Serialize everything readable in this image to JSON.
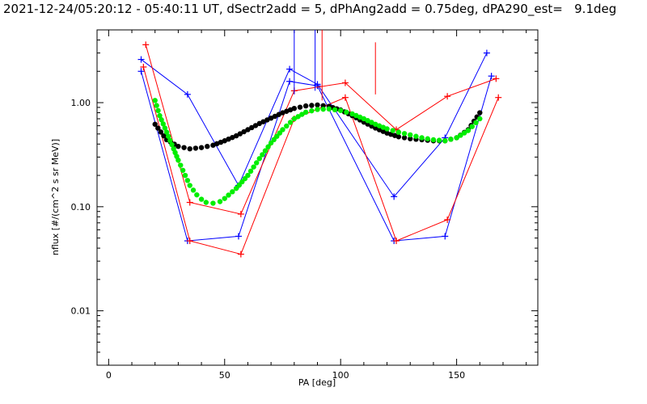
{
  "chart_data": {
    "type": "line",
    "title": "2021-12-24/05:20:12 - 05:40:11 UT, dSectr2add = 5, dPhAng2add = 0.75deg, dPA290_est=   9.1deg",
    "xlabel": "PA [deg]",
    "ylabel": "nflux [#/(cm^2 s sr MeV)]",
    "xlim": [
      -5,
      185
    ],
    "ylim": [
      0.003,
      5.0
    ],
    "yscale": "log",
    "grid": false,
    "x_ticks": [
      0,
      50,
      100,
      150
    ],
    "x_tick_labels": [
      "0",
      "50",
      "100",
      "150"
    ],
    "y_ticks": [
      0.01,
      0.1,
      1.0
    ],
    "y_tick_labels": [
      "0.01",
      "0.10",
      "1.00"
    ],
    "colors": {
      "blue": "#0000ff",
      "red": "#ff0000",
      "black": "#000000",
      "green": "#00ee00"
    },
    "series": [
      {
        "color": "blue",
        "marker": "+",
        "x": [
          14,
          34,
          56,
          78,
          90,
          123,
          145,
          163
        ],
        "y": [
          2.6,
          1.2,
          0.16,
          2.1,
          1.5,
          0.125,
          0.46,
          3.0
        ]
      },
      {
        "color": "blue",
        "marker": "+",
        "x": [
          14,
          34,
          56,
          78,
          90,
          123,
          145,
          165
        ],
        "y": [
          2.0,
          0.047,
          0.052,
          1.6,
          1.45,
          0.047,
          0.052,
          1.8
        ]
      },
      {
        "color": "red",
        "marker": "+",
        "x": [
          16,
          35,
          57,
          80,
          102,
          124,
          146,
          167
        ],
        "y": [
          3.6,
          0.11,
          0.085,
          1.3,
          1.55,
          0.55,
          1.15,
          1.7
        ]
      },
      {
        "color": "red",
        "marker": "+",
        "x": [
          15,
          35,
          57,
          80,
          102,
          124,
          146,
          168
        ],
        "y": [
          2.2,
          0.047,
          0.035,
          0.7,
          1.12,
          0.047,
          0.075,
          1.12
        ]
      },
      {
        "color": "black",
        "marker": "dot",
        "x": [
          20,
          25,
          30,
          35,
          40,
          45,
          50,
          55,
          60,
          65,
          70,
          75,
          80,
          85,
          90,
          95,
          100,
          105,
          110,
          115,
          120,
          125,
          130,
          135,
          140,
          145,
          150,
          155,
          160
        ],
        "y": [
          0.62,
          0.44,
          0.38,
          0.36,
          0.37,
          0.39,
          0.43,
          0.48,
          0.55,
          0.63,
          0.71,
          0.8,
          0.88,
          0.93,
          0.95,
          0.92,
          0.85,
          0.75,
          0.65,
          0.57,
          0.51,
          0.47,
          0.45,
          0.44,
          0.43,
          0.43,
          0.46,
          0.55,
          0.8
        ]
      },
      {
        "color": "green",
        "marker": "dot",
        "x": [
          20,
          22,
          25,
          28,
          30,
          33,
          35,
          38,
          40,
          42,
          45,
          48,
          50,
          55,
          60,
          65,
          70,
          75,
          80,
          85,
          90,
          95,
          100,
          105,
          110,
          115,
          120,
          125,
          130,
          135,
          140,
          145,
          150,
          155,
          160
        ],
        "y": [
          1.05,
          0.75,
          0.52,
          0.36,
          0.28,
          0.2,
          0.16,
          0.13,
          0.118,
          0.11,
          0.108,
          0.112,
          0.12,
          0.15,
          0.2,
          0.29,
          0.41,
          0.55,
          0.7,
          0.81,
          0.86,
          0.87,
          0.84,
          0.78,
          0.7,
          0.62,
          0.56,
          0.52,
          0.49,
          0.46,
          0.44,
          0.43,
          0.46,
          0.54,
          0.7
        ]
      }
    ],
    "spikes": [
      {
        "color": "blue",
        "x": 80,
        "y_from": 1.2,
        "y_to": 5.0
      },
      {
        "color": "blue",
        "x": 89,
        "y_from": 1.3,
        "y_to": 5.0
      },
      {
        "color": "red",
        "x": 92,
        "y_from": 1.05,
        "y_to": 5.0
      },
      {
        "color": "red",
        "x": 115,
        "y_from": 1.2,
        "y_to": 3.8
      }
    ]
  }
}
